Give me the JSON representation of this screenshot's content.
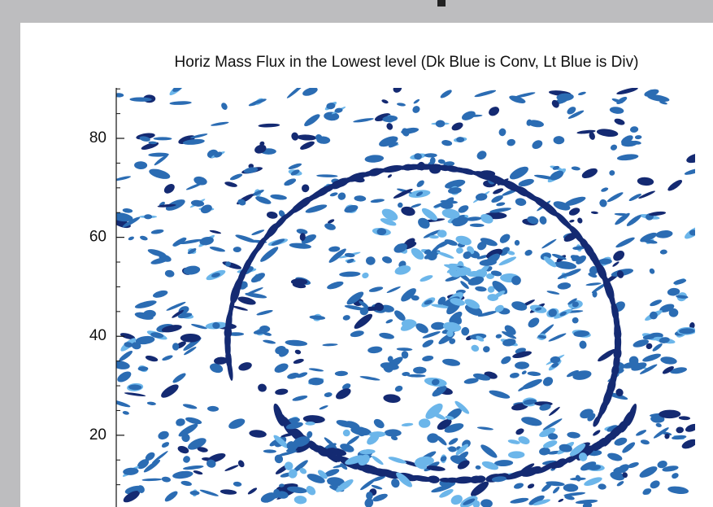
{
  "chart_data": {
    "type": "contour",
    "title": "Horiz Mass Flux in the Lowest level (Dk Blue is Conv, Lt Blue is Div)",
    "ylim": [
      5.5,
      90.2
    ],
    "yticks": [
      20,
      40,
      60,
      80
    ],
    "yminorticks": [
      10,
      15,
      25,
      30,
      35,
      45,
      50,
      55,
      65,
      70,
      75,
      85,
      90
    ],
    "colors": [
      "#142a72",
      "#2b6cb3",
      "#6cb6ea"
    ]
  }
}
